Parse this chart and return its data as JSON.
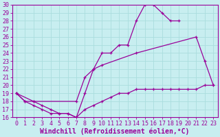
{
  "xlabel": "Windchill (Refroidissement éolien,°C)",
  "bg_color": "#c8eef0",
  "grid_color": "#aadddd",
  "line_color": "#990099",
  "xlim": [
    -0.5,
    23.5
  ],
  "ylim": [
    16,
    30
  ],
  "xticks": [
    0,
    1,
    2,
    3,
    4,
    5,
    6,
    7,
    8,
    9,
    10,
    11,
    12,
    13,
    14,
    15,
    16,
    17,
    18,
    19,
    20,
    21,
    22,
    23
  ],
  "yticks": [
    16,
    17,
    18,
    19,
    20,
    21,
    22,
    23,
    24,
    25,
    26,
    27,
    28,
    29,
    30
  ],
  "line_upper_x": [
    0,
    1,
    2,
    3,
    4,
    5,
    6,
    7,
    8,
    9,
    10,
    11,
    12,
    13,
    14,
    15,
    16,
    17,
    18,
    19
  ],
  "line_upper_y": [
    19,
    18,
    18,
    17.5,
    17,
    16.5,
    16.5,
    16,
    19,
    22,
    24,
    24,
    25,
    25,
    28,
    30,
    30,
    29,
    28,
    28
  ],
  "line_mid_x": [
    0,
    2,
    7,
    8,
    9,
    10,
    14,
    21,
    22,
    23
  ],
  "line_mid_y": [
    19,
    18,
    18,
    21,
    22,
    22.5,
    24,
    26,
    23,
    20
  ],
  "line_low_x": [
    0,
    1,
    2,
    3,
    4,
    5,
    6,
    7,
    8,
    9,
    10,
    11,
    12,
    13,
    14,
    15,
    16,
    17,
    18,
    19,
    20,
    21,
    22,
    23
  ],
  "line_low_y": [
    19,
    18,
    17.5,
    17,
    16.5,
    16.5,
    16.5,
    16,
    17,
    17.5,
    18,
    18.5,
    19,
    19,
    19.5,
    19.5,
    19.5,
    19.5,
    19.5,
    19.5,
    19.5,
    19.5,
    20,
    20
  ],
  "xlabel_fontsize": 7,
  "tick_fontsize": 6
}
